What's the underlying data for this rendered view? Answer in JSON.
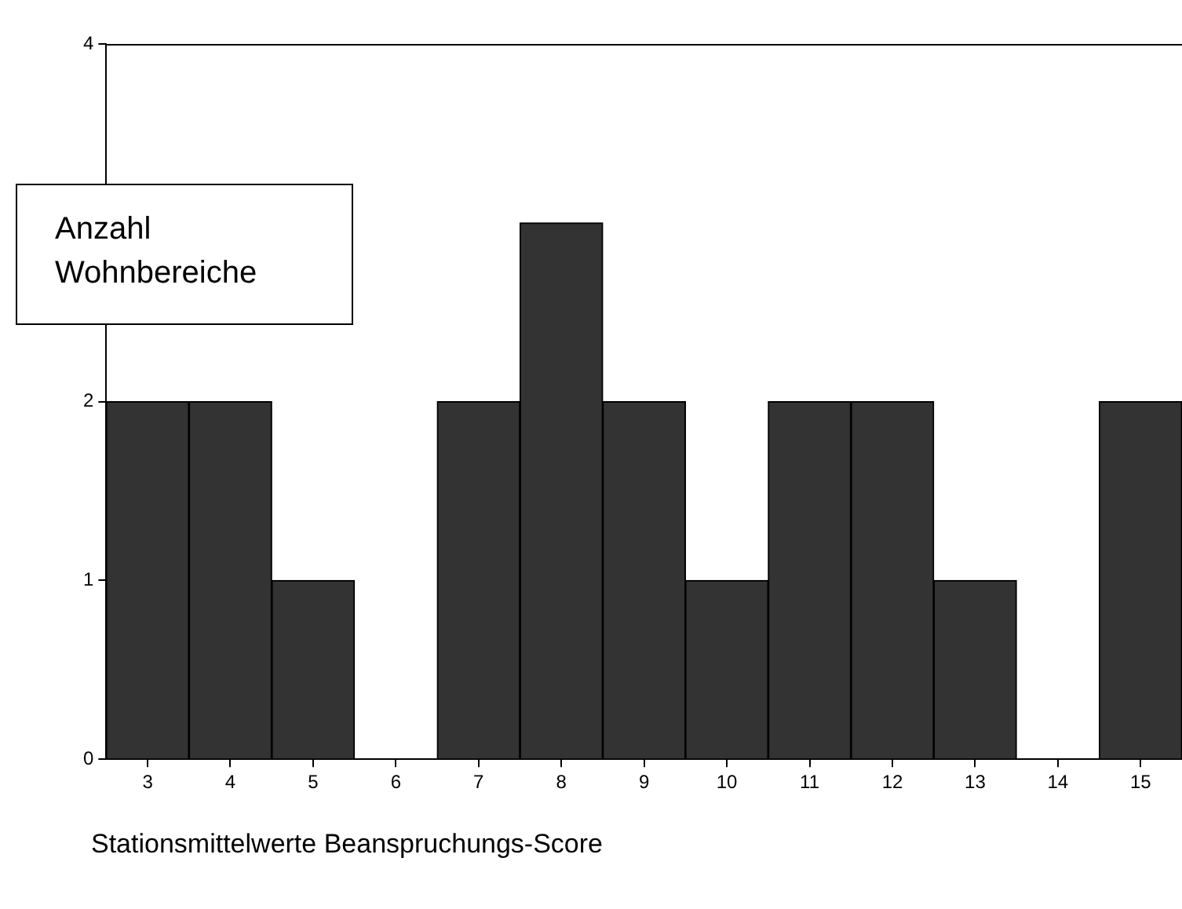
{
  "chart_data": {
    "type": "bar",
    "xlabel": "Stationsmittelwerte Beanspruchungs-Score",
    "ylabel": "Anzahl Wohnbereiche",
    "categories": [
      "3",
      "4",
      "5",
      "6",
      "7",
      "8",
      "9",
      "10",
      "11",
      "12",
      "13",
      "14",
      "15"
    ],
    "values": [
      2,
      2,
      1,
      0,
      2,
      3,
      2,
      1,
      2,
      2,
      1,
      0,
      2
    ],
    "color": "#333333",
    "ylim": [
      0,
      4
    ],
    "yticks": [
      0,
      1,
      2,
      4
    ],
    "grid": false,
    "legend": false
  }
}
